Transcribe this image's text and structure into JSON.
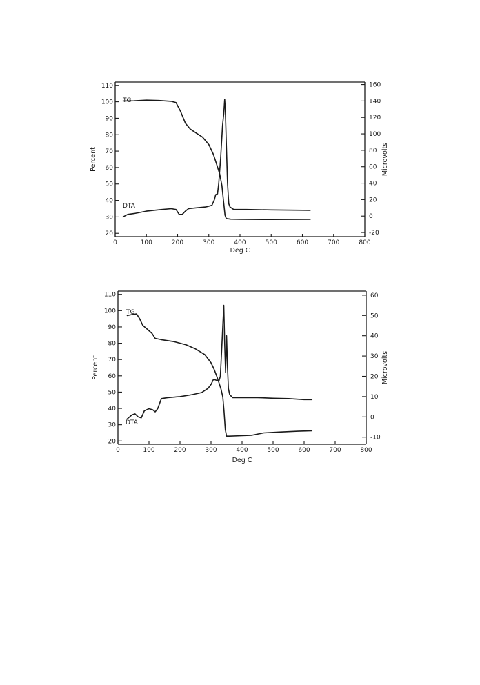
{
  "chart_data": [
    {
      "type": "line",
      "xlabel": "Deg  C",
      "ylabel_left": "Percent",
      "ylabel_right": "Microvolts",
      "xlim": [
        0,
        800
      ],
      "ylim_left": [
        18,
        112
      ],
      "ylim_right": [
        -25,
        163
      ],
      "xticks": [
        0,
        100,
        200,
        300,
        400,
        500,
        600,
        700,
        800
      ],
      "yticks_left": [
        20,
        30,
        40,
        50,
        60,
        70,
        80,
        90,
        100,
        110
      ],
      "yticks_right": [
        -20,
        0,
        20,
        40,
        60,
        80,
        100,
        120,
        140,
        160
      ],
      "series": [
        {
          "name": "TG",
          "axis": "left",
          "points": [
            [
              25,
              100.5
            ],
            [
              60,
              100.6
            ],
            [
              100,
              101
            ],
            [
              140,
              100.8
            ],
            [
              180,
              100.3
            ],
            [
              195,
              99.5
            ],
            [
              210,
              94
            ],
            [
              225,
              87
            ],
            [
              240,
              83.5
            ],
            [
              260,
              81
            ],
            [
              280,
              78.5
            ],
            [
              300,
              74
            ],
            [
              315,
              68
            ],
            [
              325,
              62
            ],
            [
              335,
              56
            ],
            [
              342,
              49
            ],
            [
              348,
              38
            ],
            [
              352,
              31
            ],
            [
              356,
              29
            ],
            [
              370,
              28.6
            ],
            [
              400,
              28.5
            ],
            [
              500,
              28.4
            ],
            [
              625,
              28.5
            ]
          ]
        },
        {
          "name": "DTA",
          "axis": "right",
          "points": [
            [
              25,
              -1
            ],
            [
              40,
              2
            ],
            [
              60,
              3
            ],
            [
              100,
              6
            ],
            [
              150,
              8
            ],
            [
              180,
              9
            ],
            [
              195,
              8
            ],
            [
              205,
              2
            ],
            [
              215,
              2
            ],
            [
              225,
              6
            ],
            [
              235,
              9
            ],
            [
              260,
              10
            ],
            [
              290,
              11
            ],
            [
              310,
              13
            ],
            [
              318,
              20
            ],
            [
              322,
              26
            ],
            [
              328,
              27
            ],
            [
              332,
              40
            ],
            [
              338,
              70
            ],
            [
              344,
              110
            ],
            [
              348,
              125
            ],
            [
              351,
              142
            ],
            [
              353,
              130
            ],
            [
              356,
              90
            ],
            [
              360,
              40
            ],
            [
              364,
              15
            ],
            [
              368,
              11
            ],
            [
              380,
              8
            ],
            [
              420,
              8
            ],
            [
              500,
              7.5
            ],
            [
              625,
              7
            ]
          ]
        }
      ]
    },
    {
      "type": "line",
      "xlabel": "Deg  C",
      "ylabel_left": "Percent",
      "ylabel_right": "Microvolts",
      "xlim": [
        0,
        800
      ],
      "ylim_left": [
        18,
        112
      ],
      "ylim_right": [
        -13.5,
        62
      ],
      "xticks": [
        0,
        100,
        200,
        300,
        400,
        500,
        600,
        700,
        800
      ],
      "yticks_left": [
        20,
        30,
        40,
        50,
        60,
        70,
        80,
        90,
        100,
        110
      ],
      "yticks_right": [
        -10,
        0,
        10,
        20,
        30,
        40,
        50,
        60
      ],
      "series": [
        {
          "name": "TG",
          "axis": "left",
          "points": [
            [
              30,
              97
            ],
            [
              45,
              97.6
            ],
            [
              60,
              98
            ],
            [
              70,
              95
            ],
            [
              80,
              91
            ],
            [
              95,
              88.5
            ],
            [
              110,
              86
            ],
            [
              120,
              83
            ],
            [
              140,
              82.2
            ],
            [
              180,
              81
            ],
            [
              220,
              79
            ],
            [
              250,
              76.5
            ],
            [
              280,
              73
            ],
            [
              300,
              68
            ],
            [
              310,
              64
            ],
            [
              318,
              60
            ],
            [
              325,
              56
            ],
            [
              332,
              52
            ],
            [
              338,
              47
            ],
            [
              342,
              38
            ],
            [
              346,
              27
            ],
            [
              350,
              23
            ],
            [
              360,
              23
            ],
            [
              400,
              23.3
            ],
            [
              430,
              23.5
            ],
            [
              470,
              25
            ],
            [
              520,
              25.5
            ],
            [
              580,
              26
            ],
            [
              625,
              26.3
            ]
          ]
        },
        {
          "name": "DTA",
          "axis": "right",
          "points": [
            [
              30,
              -1
            ],
            [
              45,
              1
            ],
            [
              55,
              1.5
            ],
            [
              65,
              0
            ],
            [
              75,
              -0.5
            ],
            [
              85,
              3
            ],
            [
              100,
              4
            ],
            [
              112,
              3.5
            ],
            [
              120,
              2.5
            ],
            [
              128,
              4
            ],
            [
              140,
              9
            ],
            [
              160,
              9.5
            ],
            [
              200,
              10
            ],
            [
              240,
              11
            ],
            [
              270,
              12
            ],
            [
              290,
              14
            ],
            [
              300,
              16
            ],
            [
              308,
              18.5
            ],
            [
              318,
              18
            ],
            [
              325,
              17.5
            ],
            [
              330,
              20
            ],
            [
              334,
              32
            ],
            [
              338,
              45
            ],
            [
              341,
              55
            ],
            [
              344,
              36
            ],
            [
              347,
              22
            ],
            [
              350,
              40
            ],
            [
              353,
              24
            ],
            [
              356,
              14
            ],
            [
              360,
              11
            ],
            [
              370,
              9.5
            ],
            [
              400,
              9.5
            ],
            [
              450,
              9.5
            ],
            [
              500,
              9.2
            ],
            [
              550,
              9
            ],
            [
              600,
              8.5
            ],
            [
              625,
              8.5
            ]
          ]
        }
      ]
    }
  ]
}
